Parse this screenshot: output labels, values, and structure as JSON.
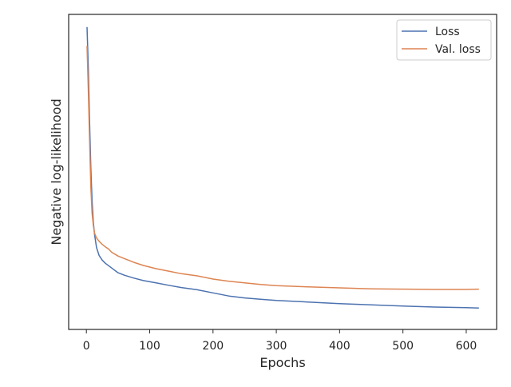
{
  "chart_data": {
    "type": "line",
    "title": "",
    "xlabel": "Epochs",
    "ylabel": "Negative log-likelihood",
    "xlim": [
      -28,
      648
    ],
    "ylim": [
      0,
      1
    ],
    "xticks": [
      0,
      100,
      200,
      300,
      400,
      500,
      600
    ],
    "xtick_labels": [
      "0",
      "100",
      "200",
      "300",
      "400",
      "500",
      "600"
    ],
    "y_tick_labels_shown": false,
    "grid": false,
    "legend_position": "top-right",
    "series": [
      {
        "name": "Loss",
        "color": "#4c72b0",
        "x": [
          1,
          3,
          5,
          7,
          9,
          11,
          13,
          16,
          20,
          25,
          30,
          40,
          50,
          60,
          75,
          90,
          110,
          130,
          150,
          175,
          200,
          225,
          250,
          275,
          300,
          350,
          400,
          450,
          500,
          550,
          600,
          620
        ],
        "y": [
          0.96,
          0.83,
          0.66,
          0.51,
          0.41,
          0.34,
          0.3,
          0.26,
          0.235,
          0.22,
          0.21,
          0.195,
          0.18,
          0.172,
          0.163,
          0.155,
          0.148,
          0.14,
          0.133,
          0.126,
          0.116,
          0.106,
          0.1,
          0.096,
          0.092,
          0.087,
          0.082,
          0.078,
          0.074,
          0.071,
          0.069,
          0.068
        ]
      },
      {
        "name": "Val. loss",
        "color": "#dd8452",
        "x": [
          1,
          3,
          5,
          7,
          9,
          11,
          13,
          16,
          20,
          25,
          30,
          35,
          40,
          50,
          60,
          75,
          90,
          110,
          130,
          150,
          175,
          200,
          225,
          250,
          275,
          300,
          350,
          400,
          450,
          500,
          550,
          600,
          620
        ],
        "y": [
          0.9,
          0.76,
          0.6,
          0.45,
          0.37,
          0.33,
          0.305,
          0.29,
          0.28,
          0.27,
          0.262,
          0.255,
          0.245,
          0.233,
          0.225,
          0.213,
          0.203,
          0.193,
          0.185,
          0.177,
          0.17,
          0.16,
          0.153,
          0.148,
          0.143,
          0.139,
          0.135,
          0.132,
          0.129,
          0.128,
          0.127,
          0.127,
          0.128
        ]
      }
    ]
  }
}
